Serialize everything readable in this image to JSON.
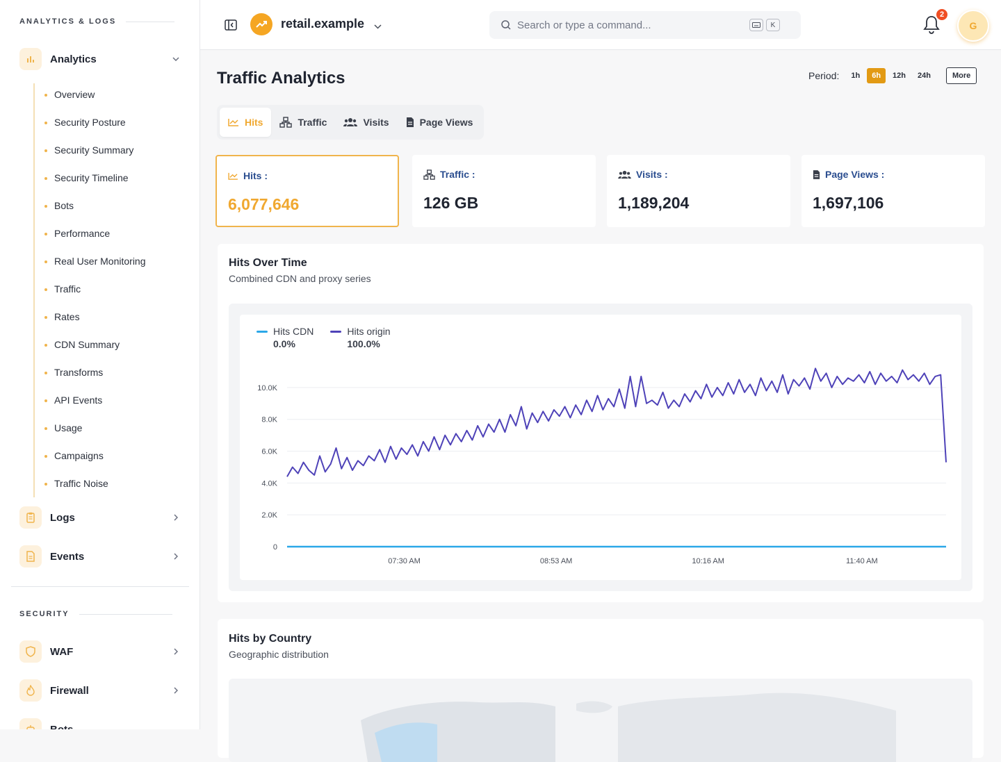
{
  "sidebar": {
    "section_analytics": "ANALYTICS & LOGS",
    "analytics_group": {
      "label": "Analytics",
      "icon": "bar-chart-icon"
    },
    "analytics_items": [
      "Overview",
      "Security Posture",
      "Security Summary",
      "Security Timeline",
      "Bots",
      "Performance",
      "Real User Monitoring",
      "Traffic",
      "Rates",
      "CDN Summary",
      "Transforms",
      "API Events",
      "Usage",
      "Campaigns",
      "Traffic Noise"
    ],
    "logs": {
      "label": "Logs",
      "icon": "clipboard-icon"
    },
    "events": {
      "label": "Events",
      "icon": "document-icon"
    },
    "section_security": "SECURITY",
    "waf": {
      "label": "WAF",
      "icon": "shield-icon"
    },
    "firewall": {
      "label": "Firewall",
      "icon": "flame-icon"
    },
    "bots": {
      "label": "Bots",
      "icon": "robot-icon"
    }
  },
  "topbar": {
    "site_name": "retail.example",
    "search_placeholder": "Search or type a command...",
    "shortcut_key": "K",
    "notification_count": "2",
    "avatar_initial": "G"
  },
  "page": {
    "title": "Traffic Analytics",
    "period_label": "Period:",
    "periods": [
      "1h",
      "6h",
      "12h",
      "24h"
    ],
    "active_period": "6h",
    "more_label": "More"
  },
  "tabs": [
    {
      "label": "Hits",
      "icon": "line-chart-icon",
      "active": true
    },
    {
      "label": "Traffic",
      "icon": "network-icon",
      "active": false
    },
    {
      "label": "Visits",
      "icon": "users-icon",
      "active": false
    },
    {
      "label": "Page Views",
      "icon": "page-icon",
      "active": false
    }
  ],
  "metrics": [
    {
      "label": "Hits :",
      "value": "6,077,646",
      "icon": "line-chart-icon",
      "active": true
    },
    {
      "label": "Traffic :",
      "value": "126 GB",
      "icon": "network-icon",
      "active": false
    },
    {
      "label": "Visits :",
      "value": "1,189,204",
      "icon": "users-icon",
      "active": false
    },
    {
      "label": "Page Views :",
      "value": "1,697,106",
      "icon": "page-icon",
      "active": false
    }
  ],
  "hits_card": {
    "title": "Hits Over Time",
    "subtitle": "Combined CDN and proxy series"
  },
  "country_card": {
    "title": "Hits by Country",
    "subtitle": "Geographic distribution"
  },
  "colors": {
    "accent": "#f0a830",
    "cdn_series": "#2ba7e8",
    "origin_series": "#4e42b8",
    "metric_label": "#2a4d8f"
  },
  "chart_data": {
    "type": "line",
    "title": "Hits Over Time",
    "ylim": [
      0,
      11000
    ],
    "y_ticks": [
      "0",
      "2.0K",
      "4.0K",
      "6.0K",
      "8.0K",
      "10.0K"
    ],
    "y_tick_values": [
      0,
      2000,
      4000,
      6000,
      8000,
      10000
    ],
    "x_ticks": [
      "07:30 AM",
      "08:53 AM",
      "10:16 AM",
      "11:40 AM"
    ],
    "x_range": [
      "06:26 AM",
      "12:26 PM"
    ],
    "x_tick_times": [
      "07:30 AM",
      "08:53 AM",
      "10:16 AM",
      "11:40 AM"
    ],
    "legend_position": "top-left",
    "grid": true,
    "series": [
      {
        "name": "Hits CDN",
        "share": "0.0%",
        "color": "#2ba7e8",
        "values": [
          0,
          0,
          0,
          0,
          0,
          0,
          0,
          0,
          0,
          0,
          0,
          0,
          0,
          0,
          0,
          0,
          0,
          0,
          0,
          0,
          0,
          0,
          0,
          0,
          0,
          0,
          0,
          0,
          0,
          0,
          0,
          0,
          0,
          0,
          0,
          0,
          0,
          0,
          0,
          0,
          0,
          0,
          0,
          0,
          0,
          0,
          0,
          0,
          0,
          0,
          0,
          0,
          0,
          0,
          0,
          0,
          0,
          0,
          0,
          0,
          0,
          0,
          0,
          0,
          0,
          0,
          0,
          0,
          0,
          0,
          0,
          0,
          0,
          0,
          0,
          0,
          0,
          0,
          0,
          0,
          0,
          0,
          0,
          0,
          0,
          0,
          0,
          0,
          0,
          0,
          0,
          0,
          0,
          0,
          0,
          0,
          0,
          0,
          0,
          0,
          0,
          0,
          0,
          0,
          0,
          0,
          0,
          0,
          0,
          0,
          0,
          0,
          0,
          0,
          0,
          0,
          0,
          0,
          0,
          0,
          0,
          0
        ]
      },
      {
        "name": "Hits origin",
        "share": "100.0%",
        "color": "#4e42b8",
        "values": [
          4400,
          5000,
          4600,
          5300,
          4800,
          4500,
          5700,
          4700,
          5200,
          6200,
          4900,
          5600,
          4800,
          5400,
          5100,
          5700,
          5400,
          6100,
          5300,
          6300,
          5500,
          6200,
          5800,
          6400,
          5700,
          6600,
          6000,
          6900,
          6100,
          7000,
          6400,
          7100,
          6600,
          7300,
          6700,
          7600,
          6900,
          7700,
          7200,
          8000,
          7200,
          8300,
          7600,
          8800,
          7400,
          8400,
          7800,
          8500,
          7900,
          8600,
          8200,
          8800,
          8100,
          8900,
          8300,
          9200,
          8500,
          9500,
          8600,
          9300,
          8800,
          9900,
          8700,
          10700,
          8800,
          10700,
          9000,
          9200,
          8900,
          9700,
          8700,
          9200,
          8800,
          9600,
          9100,
          9800,
          9300,
          10200,
          9400,
          10000,
          9500,
          10300,
          9600,
          10500,
          9700,
          10200,
          9500,
          10600,
          9800,
          10400,
          9700,
          10800,
          9600,
          10500,
          10100,
          10600,
          9900,
          11200,
          10400,
          10900,
          10000,
          10700,
          10200,
          10600,
          10400,
          10800,
          10300,
          11000,
          10200,
          10900,
          10400,
          10700,
          10300,
          11100,
          10500,
          10800,
          10400,
          10900,
          10200,
          10700,
          10800,
          5300
        ]
      }
    ]
  }
}
